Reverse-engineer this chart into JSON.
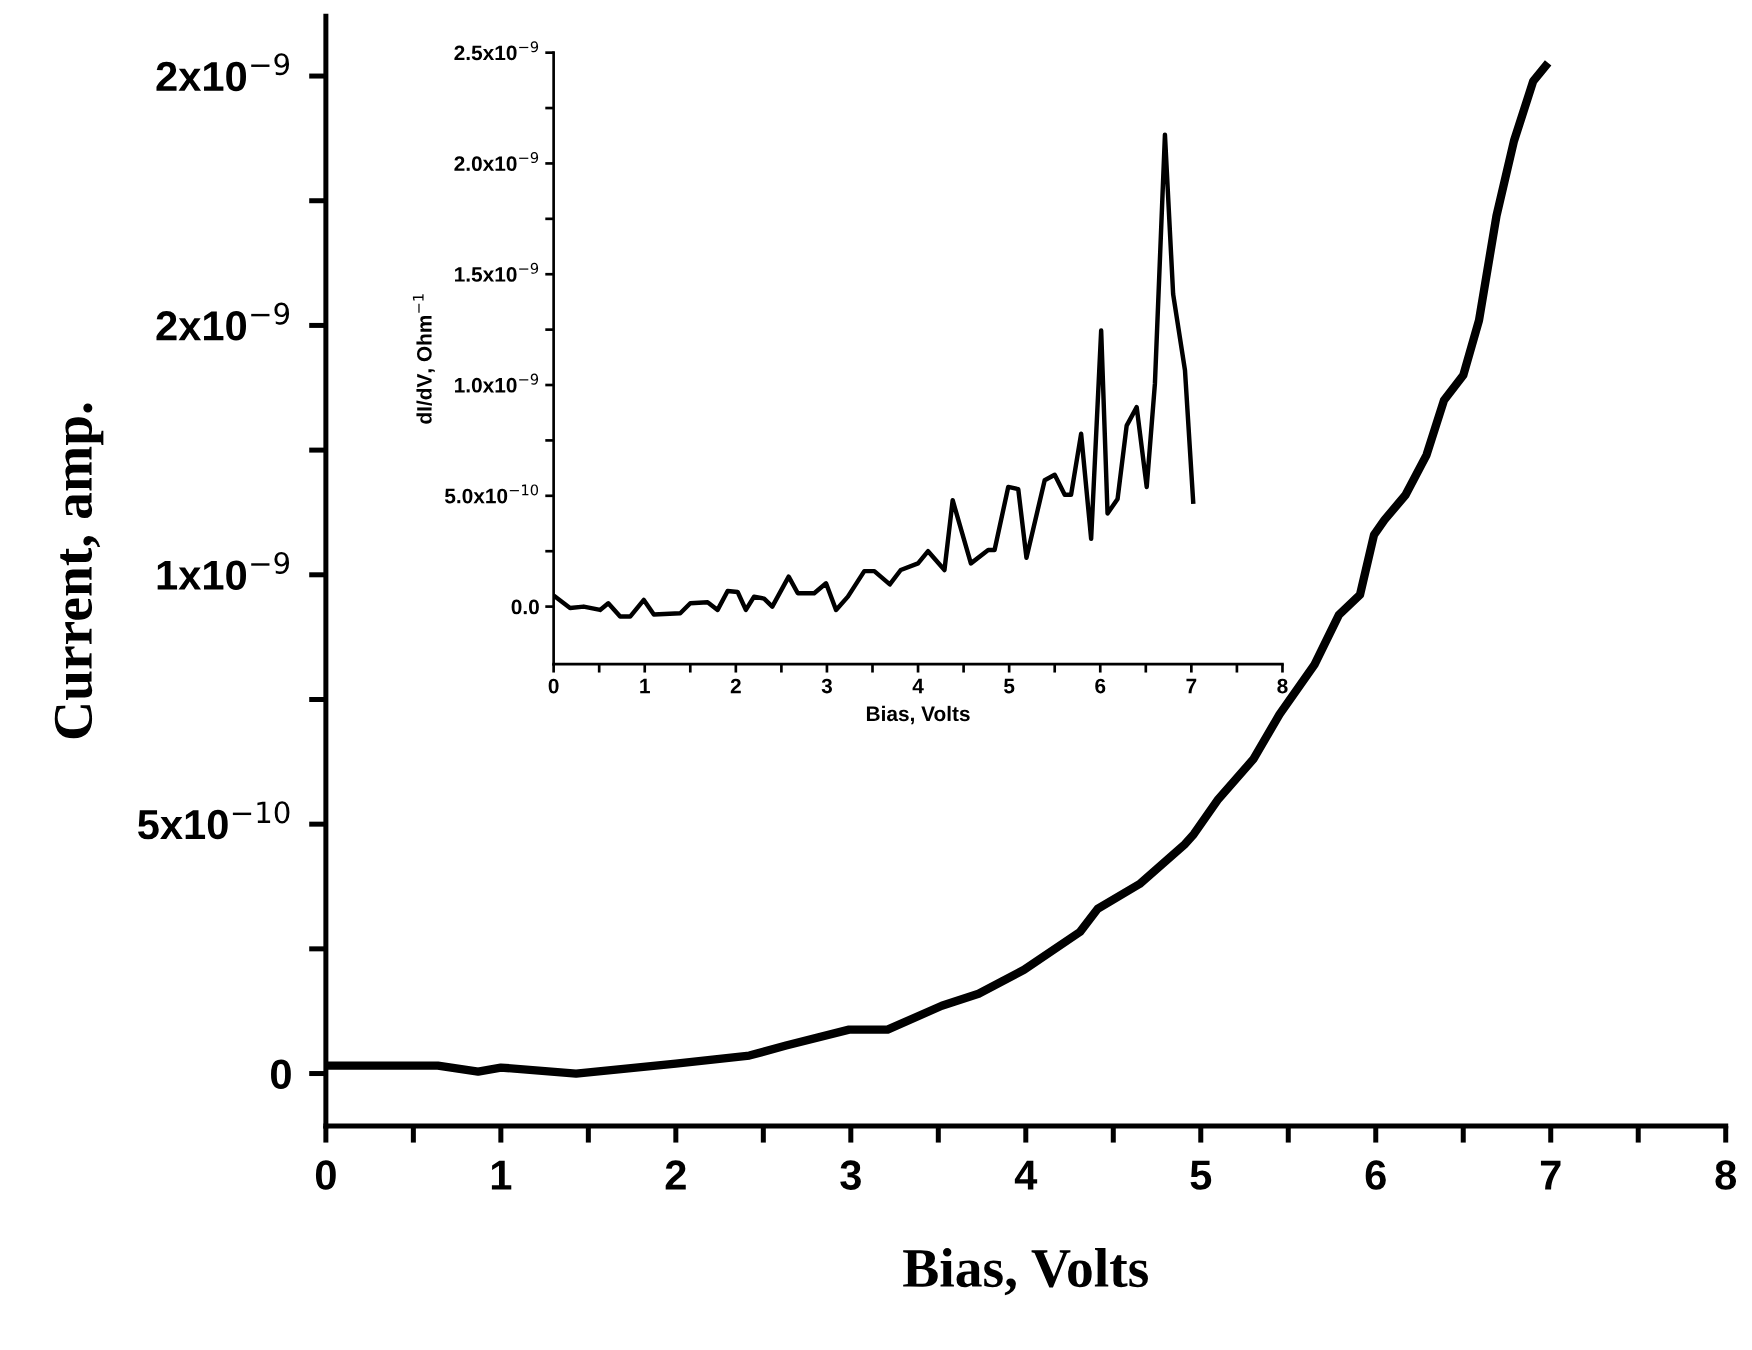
{
  "chart_data": [
    {
      "type": "line",
      "xlabel": "Bias, Volts",
      "ylabel": "Current, amp.",
      "line_style": "solid",
      "marker": "none",
      "grid": false,
      "legend": false,
      "xlim": [
        0,
        8
      ],
      "xticks": [
        0,
        {
          "value": 0.5,
          "label": null
        },
        1,
        {
          "value": 1.5,
          "label": null
        },
        2,
        {
          "value": 2.5,
          "label": null
        },
        3,
        {
          "value": 3.5,
          "label": null
        },
        4,
        {
          "value": 4.5,
          "label": null
        },
        5,
        {
          "value": 5.5,
          "label": null
        },
        6,
        {
          "value": 6.5,
          "label": null
        },
        7,
        {
          "value": 7.5,
          "label": null
        },
        8
      ],
      "ylim": [
        -1.05e-10,
        2.12e-09
      ],
      "yticks": [
        {
          "value": 0,
          "label": "0"
        },
        {
          "value": 2.5e-10,
          "label": null
        },
        {
          "value": 5e-10,
          "label": "5x10$^{−10}$"
        },
        {
          "value": 7.5e-10,
          "label": null
        },
        {
          "value": 1e-09,
          "label": "1x10$^{−9}$"
        },
        {
          "value": 1.25e-09,
          "label": null
        },
        {
          "value": 1.5e-09,
          "label": "2x10$^{−9}$"
        },
        {
          "value": 1.75e-09,
          "label": null
        },
        {
          "value": 2e-09,
          "label": "2x10$^{−9}$"
        }
      ],
      "series": [
        {
          "color": "#000000",
          "x": [
            0.03,
            0.64,
            0.87,
            1.0,
            1.43,
            2.0,
            2.42,
            2.63,
            2.99,
            3.21,
            3.52,
            3.73,
            3.99,
            4.31,
            4.41,
            4.65,
            4.91,
            4.96,
            5.1,
            5.3,
            5.45,
            5.65,
            5.79,
            5.91,
            5.99,
            6.05,
            6.17,
            6.29,
            6.39,
            6.5,
            6.59,
            6.69,
            6.79,
            6.9,
            6.97
          ],
          "values": [
            1.6e-11,
            1.6e-11,
            4e-12,
            1.2e-11,
            0,
            2e-11,
            3.6e-11,
            5.6e-11,
            8.8e-11,
            8.8e-11,
            1.36e-10,
            1.6e-10,
            2.08e-10,
            2.84e-10,
            3.3e-10,
            3.8e-10,
            4.6e-10,
            4.8e-10,
            5.5e-10,
            6.3e-10,
            7.2e-10,
            8.2e-10,
            9.2e-10,
            9.6e-10,
            1.08e-09,
            1.11e-09,
            1.16e-09,
            1.24e-09,
            1.35e-09,
            1.4e-09,
            1.51e-09,
            1.72e-09,
            1.87e-09,
            1.99e-09,
            2.02e-09
          ]
        }
      ]
    },
    {
      "type": "line",
      "xlabel": "Bias, Volts",
      "ylabel": "dI/dV, Ohm$^{−1}$",
      "line_style": "solid",
      "marker": "none",
      "grid": false,
      "legend": false,
      "xlim": [
        0,
        8
      ],
      "xticks": [
        0,
        {
          "value": 0.5,
          "label": null
        },
        1,
        {
          "value": 1.5,
          "label": null
        },
        2,
        {
          "value": 2.5,
          "label": null
        },
        3,
        {
          "value": 3.5,
          "label": null
        },
        4,
        {
          "value": 4.5,
          "label": null
        },
        5,
        {
          "value": 5.5,
          "label": null
        },
        6,
        {
          "value": 6.5,
          "label": null
        },
        7,
        {
          "value": 7.5,
          "label": null
        },
        8
      ],
      "ylim": [
        -2.6e-10,
        2.5e-09
      ],
      "yticks": [
        {
          "value": 0,
          "label": "0.0"
        },
        {
          "value": 2.5e-10,
          "label": null
        },
        {
          "value": 5e-10,
          "label": "5.0x10$^{−10}$"
        },
        {
          "value": 7.5e-10,
          "label": null
        },
        {
          "value": 1e-09,
          "label": "1.0x10$^{−9}$"
        },
        {
          "value": 1.25e-09,
          "label": null
        },
        {
          "value": 1.5e-09,
          "label": "1.5x10$^{−9}$"
        },
        {
          "value": 1.75e-09,
          "label": null
        },
        {
          "value": 2e-09,
          "label": "2.0x10$^{−9}$"
        },
        {
          "value": 2.25e-09,
          "label": null
        },
        {
          "value": 2.5e-09,
          "label": "2.5x10$^{−9}$"
        }
      ],
      "series": [
        {
          "color": "#000000",
          "x": [
            0,
            0.18,
            0.33,
            0.51,
            0.6,
            0.73,
            0.84,
            0.99,
            1.1,
            1.39,
            1.5,
            1.69,
            1.8,
            1.91,
            2.02,
            2.11,
            2.2,
            2.31,
            2.4,
            2.58,
            2.68,
            2.86,
            2.99,
            3.1,
            3.23,
            3.41,
            3.52,
            3.69,
            3.81,
            4.0,
            4.11,
            4.29,
            4.38,
            4.58,
            4.77,
            4.84,
            4.99,
            5.1,
            5.19,
            5.39,
            5.5,
            5.61,
            5.68,
            5.79,
            5.9,
            6.01,
            6.08,
            6.19,
            6.29,
            6.4,
            6.51,
            6.6,
            6.71,
            6.8,
            6.93,
            7.02
          ],
          "values": [
            5e-11,
            -6e-12,
            0,
            -1.5e-11,
            1.5e-11,
            -4.5e-11,
            -4.5e-11,
            3e-11,
            -3.6e-11,
            -3e-11,
            1.5e-11,
            2e-11,
            -1.5e-11,
            7e-11,
            6.6e-11,
            -1.5e-11,
            4.5e-11,
            3.6e-11,
            0,
            1.35e-10,
            6e-11,
            6e-11,
            1.05e-10,
            -1.5e-11,
            4.5e-11,
            1.6e-10,
            1.6e-10,
            1e-10,
            1.65e-10,
            1.95e-10,
            2.5e-10,
            1.65e-10,
            4.8e-10,
            1.95e-10,
            2.55e-10,
            2.55e-10,
            5.4e-10,
            5.3e-10,
            2.2e-10,
            5.7e-10,
            5.95e-10,
            5.05e-10,
            5.05e-10,
            7.8e-10,
            3.06e-10,
            1.246e-09,
            4.2e-10,
            4.86e-10,
            8.17e-10,
            9e-10,
            5.4e-10,
            1.006e-09,
            2.13e-09,
            1.41e-09,
            1.066e-09,
            4.74e-10
          ]
        }
      ]
    }
  ]
}
